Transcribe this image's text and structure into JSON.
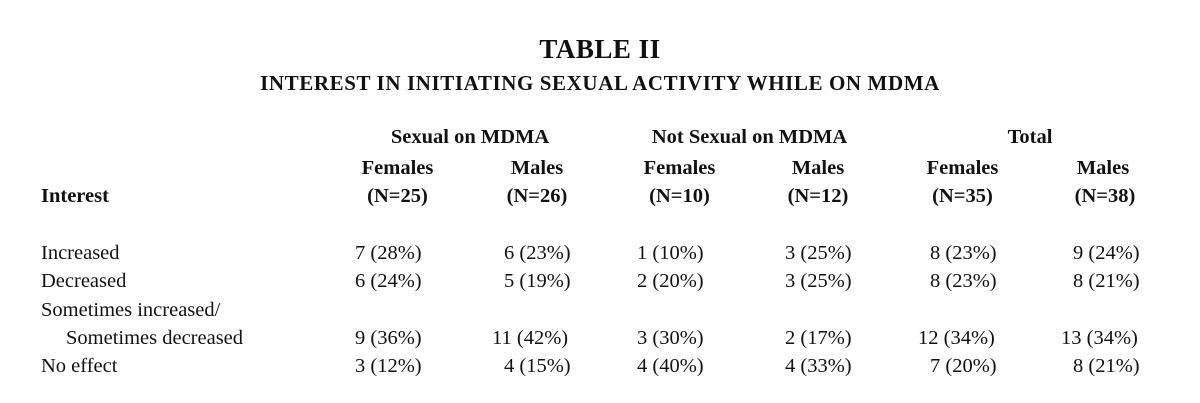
{
  "table": {
    "title": "TABLE II",
    "subtitle": "INTEREST IN INITIATING SEXUAL ACTIVITY WHILE ON MDMA",
    "row_header": "Interest",
    "groups": [
      "Sexual on MDMA",
      "Not Sexual on MDMA",
      "Total"
    ],
    "columns": [
      {
        "label": "Females",
        "n": "(N=25)"
      },
      {
        "label": "Males",
        "n": "(N=26)"
      },
      {
        "label": "Females",
        "n": "(N=10)"
      },
      {
        "label": "Males",
        "n": "(N=12)"
      },
      {
        "label": "Females",
        "n": "(N=35)"
      },
      {
        "label": "Males",
        "n": "(N=38)"
      }
    ],
    "rows": [
      {
        "label": "Increased",
        "cells": [
          "7 (28%)",
          "6 (23%)",
          "1 (10%)",
          "3 (25%)",
          "8 (23%)",
          "9 (24%)"
        ]
      },
      {
        "label": "Decreased",
        "cells": [
          "6 (24%)",
          "5 (19%)",
          "2 (20%)",
          "3 (25%)",
          "8 (23%)",
          "8 (21%)"
        ]
      },
      {
        "label": "Sometimes increased/",
        "cells": []
      },
      {
        "label": "Sometimes decreased",
        "cells": [
          "9 (36%)",
          "11 (42%)",
          "3 (30%)",
          "2 (17%)",
          "12 (34%)",
          "13 (34%)"
        ]
      },
      {
        "label": "No effect",
        "cells": [
          "3 (12%)",
          "4 (15%)",
          "4 (40%)",
          "4 (33%)",
          "7 (20%)",
          "8 (21%)"
        ]
      }
    ]
  }
}
